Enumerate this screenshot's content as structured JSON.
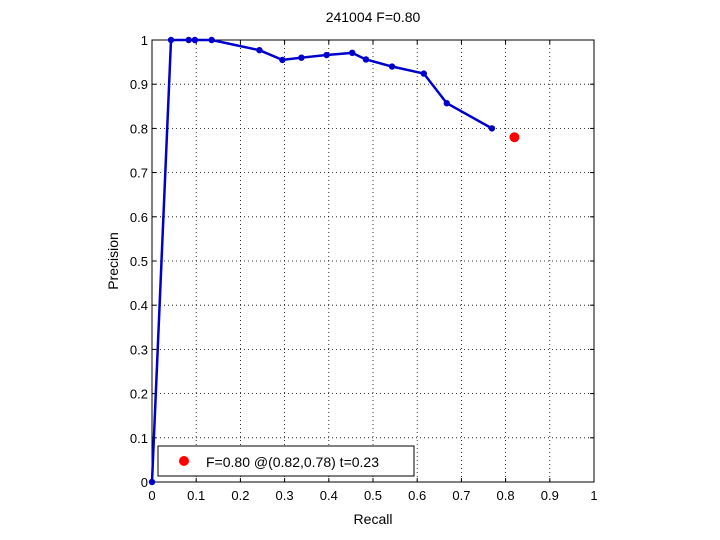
{
  "chart_data": {
    "type": "line",
    "title": "241004 F=0.80",
    "xlabel": "Recall",
    "ylabel": "Precision",
    "xlim": [
      0,
      1
    ],
    "ylim": [
      0,
      1
    ],
    "xticks": [
      0,
      0.1,
      0.2,
      0.3,
      0.4,
      0.5,
      0.6,
      0.7,
      0.8,
      0.9,
      1
    ],
    "yticks": [
      0,
      0.1,
      0.2,
      0.3,
      0.4,
      0.5,
      0.6,
      0.7,
      0.8,
      0.9,
      1
    ],
    "xtick_labels": [
      "0",
      "0.1",
      "0.2",
      "0.3",
      "0.4",
      "0.5",
      "0.6",
      "0.7",
      "0.8",
      "0.9",
      "1"
    ],
    "ytick_labels": [
      "0",
      "0.1",
      "0.2",
      "0.3",
      "0.4",
      "0.5",
      "0.6",
      "0.7",
      "0.8",
      "0.9",
      "1"
    ],
    "grid": true,
    "grid_style": "dotted",
    "series": [
      {
        "color": "#0000cc",
        "points": [
          [
            0.0,
            0.0
          ],
          [
            0.043,
            1.0
          ],
          [
            0.083,
            1.0
          ],
          [
            0.097,
            1.0
          ],
          [
            0.135,
            1.0
          ],
          [
            0.243,
            0.977
          ],
          [
            0.295,
            0.955
          ],
          [
            0.338,
            0.96
          ],
          [
            0.395,
            0.966
          ],
          [
            0.453,
            0.971
          ],
          [
            0.484,
            0.956
          ],
          [
            0.543,
            0.94
          ],
          [
            0.615,
            0.924
          ],
          [
            0.667,
            0.857
          ],
          [
            0.769,
            0.8
          ]
        ]
      }
    ],
    "best_point": {
      "x": 0.82,
      "y": 0.78,
      "color": "#ff0000"
    },
    "legend": {
      "position": "bottom-left",
      "label": "F=0.80 @(0.82,0.78) t=0.23"
    }
  }
}
